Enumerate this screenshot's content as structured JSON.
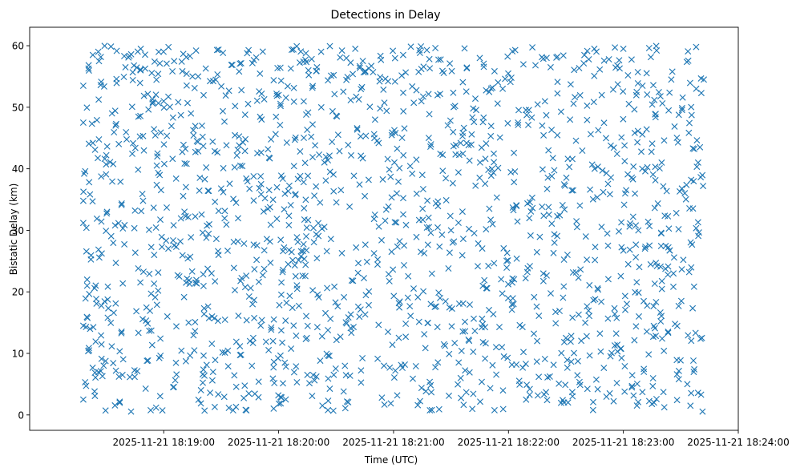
{
  "chart_data": {
    "type": "scatter",
    "title": "Detections in Delay",
    "xlabel": "Time (UTC)",
    "ylabel": "Bistatic Delay (km)",
    "xlim_seconds_after_18_18_00": [
      -10,
      360
    ],
    "ylim": [
      -2.5,
      63
    ],
    "x_ticks": [
      {
        "seconds": 60,
        "label": "2025-11-21 18:19:00"
      },
      {
        "seconds": 120,
        "label": "2025-11-21 18:20:00"
      },
      {
        "seconds": 180,
        "label": "2025-11-21 18:21:00"
      },
      {
        "seconds": 240,
        "label": "2025-11-21 18:22:00"
      },
      {
        "seconds": 300,
        "label": "2025-11-21 18:23:00"
      },
      {
        "seconds": 360,
        "label": "2025-11-21 18:24:00"
      }
    ],
    "y_ticks": [
      0,
      10,
      20,
      30,
      40,
      50,
      60
    ],
    "marker": "x",
    "color": "#1f77b4",
    "series": [
      {
        "name": "detections",
        "x_range_seconds": [
          18,
          342
        ],
        "y_range_km": [
          0.5,
          60
        ],
        "count": 1600,
        "distribution": "approximately uniform random scatter over the time span and delay range",
        "sample_points": [
          [
            18,
            53.5
          ],
          [
            18,
            47.5
          ],
          [
            18,
            34.8
          ],
          [
            18,
            31.2
          ],
          [
            18,
            14.5
          ],
          [
            18,
            2.5
          ],
          [
            19,
            39.6
          ],
          [
            20,
            22
          ],
          [
            20,
            21
          ],
          [
            21,
            10.5
          ],
          [
            23,
            58.5
          ],
          [
            23,
            44.2
          ],
          [
            28,
            6.3
          ],
          [
            30,
            42.2
          ],
          [
            33,
            49
          ],
          [
            40,
            56.5
          ],
          [
            45,
            33.2
          ],
          [
            48,
            59.5
          ],
          [
            55,
            26
          ],
          [
            60,
            51
          ],
          [
            75,
            55
          ],
          [
            80,
            47
          ],
          [
            90,
            36.8
          ],
          [
            100,
            40.5
          ],
          [
            105,
            12
          ],
          [
            115,
            41.8
          ],
          [
            120,
            52
          ],
          [
            125,
            24.5
          ],
          [
            135,
            6.5
          ],
          [
            140,
            56.5
          ],
          [
            160,
            59.5
          ],
          [
            170,
            45
          ],
          [
            175,
            8
          ],
          [
            185,
            58.5
          ],
          [
            195,
            39
          ],
          [
            200,
            0.8
          ],
          [
            210,
            30
          ],
          [
            215,
            44.2
          ],
          [
            225,
            58
          ],
          [
            230,
            33.5
          ],
          [
            237,
            53
          ],
          [
            245,
            47.5
          ],
          [
            255,
            12
          ],
          [
            262,
            56.5
          ],
          [
            270,
            12.5
          ],
          [
            285,
            40
          ],
          [
            292,
            27.5
          ],
          [
            300,
            59.5
          ],
          [
            310,
            53.5
          ],
          [
            316,
            2
          ],
          [
            325,
            54.5
          ],
          [
            335,
            1.5
          ],
          [
            338,
            59.8
          ],
          [
            340,
            43.5
          ],
          [
            341,
            12.5
          ],
          [
            342,
            54.5
          ]
        ]
      }
    ]
  }
}
